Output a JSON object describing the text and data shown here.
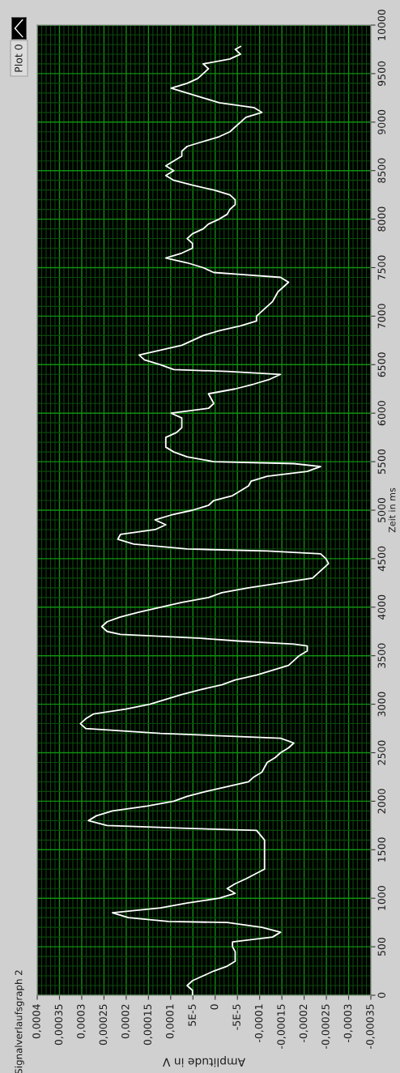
{
  "chart_data": {
    "type": "line",
    "title": "Signalverlaufsgraph 2",
    "xlabel": "Amplitude in V",
    "ylabel": "Zeit in ms",
    "xlim": [
      0.0004,
      -0.00035
    ],
    "xticks": [
      {
        "value": 0.0004,
        "label": "0,0004"
      },
      {
        "value": 0.00035,
        "label": "0,00035"
      },
      {
        "value": 0.0003,
        "label": "0,0003"
      },
      {
        "value": 0.00025,
        "label": "0,00025"
      },
      {
        "value": 0.0002,
        "label": "0,0002"
      },
      {
        "value": 0.00015,
        "label": "0,00015"
      },
      {
        "value": 0.0001,
        "label": "0,0001"
      },
      {
        "value": 5e-05,
        "label": "5E-5"
      },
      0,
      {
        "value": -5e-05,
        "label": "-5E-5"
      },
      {
        "value": -0.0001,
        "label": "-0,0001"
      },
      {
        "value": -0.00015,
        "label": "-0,00015"
      },
      {
        "value": -0.0002,
        "label": "-0,0002"
      },
      {
        "value": -0.00025,
        "label": "-0,00025"
      },
      {
        "value": -0.0003,
        "label": "-0,0003"
      },
      {
        "value": -0.00035,
        "label": "-0,00035"
      },
      {
        "value": 0.00039,
        "label": null
      },
      {
        "value": 0.00038,
        "label": null
      },
      {
        "value": 0.00037,
        "label": null
      },
      {
        "value": 0.00036,
        "label": null
      },
      {
        "value": 0.00034,
        "label": null
      },
      {
        "value": 0.00033,
        "label": null
      },
      {
        "value": 0.00032,
        "label": null
      },
      {
        "value": 0.00031,
        "label": null
      },
      {
        "value": 0.00029,
        "label": null
      },
      {
        "value": 0.00028,
        "label": null
      },
      {
        "value": 0.00027,
        "label": null
      },
      {
        "value": 0.00026,
        "label": null
      },
      {
        "value": 0.00024,
        "label": null
      },
      {
        "value": 0.00023,
        "label": null
      },
      {
        "value": 0.00022,
        "label": null
      },
      {
        "value": 0.00021,
        "label": null
      },
      {
        "value": 0.00019,
        "label": null
      },
      {
        "value": 0.00018,
        "label": null
      },
      {
        "value": 0.00017,
        "label": null
      },
      {
        "value": 0.00016,
        "label": null
      },
      {
        "value": 0.00014,
        "label": null
      },
      {
        "value": 0.00013,
        "label": null
      },
      {
        "value": 0.00012,
        "label": null
      },
      {
        "value": 0.00011,
        "label": null
      },
      {
        "value": 9e-05,
        "label": null
      },
      {
        "value": 8e-05,
        "label": null
      },
      {
        "value": 7e-05,
        "label": null
      },
      {
        "value": 6e-05,
        "label": null
      },
      {
        "value": 4e-05,
        "label": null
      },
      {
        "value": 3e-05,
        "label": null
      },
      {
        "value": 2e-05,
        "label": null
      },
      {
        "value": 1e-05,
        "label": null
      },
      {
        "value": -1e-05,
        "label": null
      },
      {
        "value": -2e-05,
        "label": null
      },
      {
        "value": -3e-05,
        "label": null
      },
      {
        "value": -4e-05,
        "label": null
      },
      {
        "value": -6e-05,
        "label": null
      },
      {
        "value": -7e-05,
        "label": null
      },
      {
        "value": -8e-05,
        "label": null
      },
      {
        "value": -9e-05,
        "label": null
      },
      {
        "value": -0.00011,
        "label": null
      },
      {
        "value": -0.00012,
        "label": null
      },
      {
        "value": -0.00013,
        "label": null
      },
      {
        "value": -0.00014,
        "label": null
      },
      {
        "value": -0.00016,
        "label": null
      },
      {
        "value": -0.00017,
        "label": null
      },
      {
        "value": -0.00018,
        "label": null
      },
      {
        "value": -0.00019,
        "label": null
      },
      {
        "value": -0.00021,
        "label": null
      },
      {
        "value": -0.00022,
        "label": null
      },
      {
        "value": -0.00023,
        "label": null
      },
      {
        "value": -0.00024,
        "label": null
      },
      {
        "value": -0.00026,
        "label": null
      },
      {
        "value": -0.00027,
        "label": null
      },
      {
        "value": -0.00028,
        "label": null
      },
      {
        "value": -0.00029,
        "label": null
      },
      {
        "value": -0.00031,
        "label": null
      },
      {
        "value": -0.00032,
        "label": null
      },
      {
        "value": -0.00033,
        "label": null
      },
      {
        "value": -0.00034,
        "label": null
      }
    ],
    "ylim": [
      0,
      10000
    ],
    "yticks": [
      0,
      500,
      1000,
      1500,
      2000,
      2500,
      3000,
      3500,
      4000,
      4500,
      5000,
      5500,
      6000,
      6500,
      7000,
      7500,
      8000,
      8500,
      9000,
      9500,
      10000,
      {
        "value": 100,
        "label": null
      },
      {
        "value": 200,
        "label": null
      },
      {
        "value": 300,
        "label": null
      },
      {
        "value": 400,
        "label": null
      },
      {
        "value": 600,
        "label": null
      },
      {
        "value": 700,
        "label": null
      },
      {
        "value": 800,
        "label": null
      },
      {
        "value": 900,
        "label": null
      },
      {
        "value": 1100,
        "label": null
      },
      {
        "value": 1200,
        "label": null
      },
      {
        "value": 1300,
        "label": null
      },
      {
        "value": 1400,
        "label": null
      },
      {
        "value": 1600,
        "label": null
      },
      {
        "value": 1700,
        "label": null
      },
      {
        "value": 1800,
        "label": null
      },
      {
        "value": 1900,
        "label": null
      },
      {
        "value": 2100,
        "label": null
      },
      {
        "value": 2200,
        "label": null
      },
      {
        "value": 2300,
        "label": null
      },
      {
        "value": 2400,
        "label": null
      },
      {
        "value": 2600,
        "label": null
      },
      {
        "value": 2700,
        "label": null
      },
      {
        "value": 2800,
        "label": null
      },
      {
        "value": 2900,
        "label": null
      },
      {
        "value": 3100,
        "label": null
      },
      {
        "value": 3200,
        "label": null
      },
      {
        "value": 3300,
        "label": null
      },
      {
        "value": 3400,
        "label": null
      },
      {
        "value": 3600,
        "label": null
      },
      {
        "value": 3700,
        "label": null
      },
      {
        "value": 3800,
        "label": null
      },
      {
        "value": 3900,
        "label": null
      },
      {
        "value": 4100,
        "label": null
      },
      {
        "value": 4200,
        "label": null
      },
      {
        "value": 4300,
        "label": null
      },
      {
        "value": 4400,
        "label": null
      },
      {
        "value": 4600,
        "label": null
      },
      {
        "value": 4700,
        "label": null
      },
      {
        "value": 4800,
        "label": null
      },
      {
        "value": 4900,
        "label": null
      },
      {
        "value": 5100,
        "label": null
      },
      {
        "value": 5200,
        "label": null
      },
      {
        "value": 5300,
        "label": null
      },
      {
        "value": 5400,
        "label": null
      },
      {
        "value": 5600,
        "label": null
      },
      {
        "value": 5700,
        "label": null
      },
      {
        "value": 5800,
        "label": null
      },
      {
        "value": 5900,
        "label": null
      },
      {
        "value": 6100,
        "label": null
      },
      {
        "value": 6200,
        "label": null
      },
      {
        "value": 6300,
        "label": null
      },
      {
        "value": 6400,
        "label": null
      },
      {
        "value": 6600,
        "label": null
      },
      {
        "value": 6700,
        "label": null
      },
      {
        "value": 6800,
        "label": null
      },
      {
        "value": 6900,
        "label": null
      },
      {
        "value": 7100,
        "label": null
      },
      {
        "value": 7200,
        "label": null
      },
      {
        "value": 7300,
        "label": null
      },
      {
        "value": 7400,
        "label": null
      },
      {
        "value": 7600,
        "label": null
      },
      {
        "value": 7700,
        "label": null
      },
      {
        "value": 7800,
        "label": null
      },
      {
        "value": 7900,
        "label": null
      },
      {
        "value": 8100,
        "label": null
      },
      {
        "value": 8200,
        "label": null
      },
      {
        "value": 8300,
        "label": null
      },
      {
        "value": 8400,
        "label": null
      },
      {
        "value": 8600,
        "label": null
      },
      {
        "value": 8700,
        "label": null
      },
      {
        "value": 8800,
        "label": null
      },
      {
        "value": 8900,
        "label": null
      },
      {
        "value": 9100,
        "label": null
      },
      {
        "value": 9200,
        "label": null
      },
      {
        "value": 9300,
        "label": null
      },
      {
        "value": 9400,
        "label": null
      },
      {
        "value": 9600,
        "label": null
      },
      {
        "value": 9700,
        "label": null
      },
      {
        "value": 9800,
        "label": null
      },
      {
        "value": 9900,
        "label": null
      }
    ],
    "grid": true,
    "legend": "top left",
    "series": [
      {
        "name": "Plot 0",
        "color": "#ffffff",
        "x": [
          5.1e-05,
          5.1e-05,
          6.3e-05,
          5.1e-05,
          2.7e-05,
          3e-06,
          -2.7e-05,
          -4.5e-05,
          -4.5e-05,
          -4.5e-05,
          -3.9e-05,
          -3.9e-05,
          -0.000129,
          -0.000147,
          -0.000105,
          -2.7e-05,
          0.000105,
          0.000195,
          0.000231,
          0.000123,
          6.3e-05,
          -9e-06,
          -4.5e-05,
          -2.7e-05,
          -4.5e-05,
          -6.9e-05,
          -0.000111,
          -0.000111,
          -0.000111,
          -0.000111,
          -9.3e-05,
          6.3e-05,
          0.000243,
          0.000285,
          0.000267,
          0.000231,
          0.000153,
          9.3e-05,
          6.3e-05,
          2.1e-05,
          -2.7e-05,
          -7.5e-05,
          -8.7e-05,
          -0.000105,
          -0.000111,
          -0.000117,
          -0.000135,
          -0.000147,
          -0.000165,
          -0.000177,
          -0.000147,
          0.000123,
          0.000291,
          0.000303,
          0.000291,
          0.000273,
          0.000201,
          0.000147,
          0.000111,
          7.5e-05,
          3.3e-05,
          -1.5e-05,
          -4.5e-05,
          -9.3e-05,
          -0.000129,
          -0.000165,
          -0.000177,
          -0.000189,
          -0.000207,
          -0.000207,
          -0.000177,
          -5.7e-05,
          3.3e-05,
          0.000213,
          0.000243,
          0.000255,
          0.000243,
          0.000213,
          0.000171,
          0.000123,
          7.5e-05,
          1.5e-05,
          -1.5e-05,
          -7.5e-05,
          -0.000147,
          -0.000219,
          -0.000231,
          -0.000243,
          -0.000255,
          -0.000249,
          -0.000237,
          -0.000117,
          6.3e-05,
          0.000183,
          0.000219,
          0.000213,
          0.000135,
          0.000111,
          0.000135,
          9.9e-05,
          5.1e-05,
          1.5e-05,
          3e-06,
          -3.9e-05,
          -5.7e-05,
          -7.5e-05,
          -8.1e-05,
          -0.000117,
          -0.000207,
          -0.000237,
          -0.000177,
          3e-06,
          6.3e-05,
          9.3e-05,
          0.000111,
          0.000111,
          0.000111,
          8.7e-05,
          7.5e-05,
          7.5e-05,
          7.5e-05,
          9.9e-05,
          1.5e-05,
          3e-06,
          9e-06,
          1.5e-05,
          -4.5e-05,
          -8.7e-05,
          -0.000123,
          -0.000147,
          -2.7e-05,
          9.3e-05,
          0.000123,
          0.000159,
          0.000171,
          0.000123,
          7.5e-05,
          5.1e-05,
          2.7e-05,
          -9e-06,
          -5.7e-05,
          -9.3e-05,
          -9.3e-05,
          -0.000105,
          -0.000117,
          -0.000129,
          -0.000135,
          -0.000141,
          -0.000153,
          -0.000165,
          -0.000147,
          -5.7e-05,
          3e-06,
          2.7e-05,
          6.3e-05,
          0.000111,
          7.5e-05,
          5.1e-05,
          5.1e-05,
          6.3e-05,
          5.1e-05,
          2.7e-05,
          1.5e-05,
          -9e-06,
          -2.7e-05,
          -3.3e-05,
          -4.5e-05,
          -4.5e-05,
          -3.3e-05,
          3e-06,
          5.1e-05,
          9.3e-05,
          0.000111,
          9.3e-05,
          0.000111,
          9.3e-05,
          7.5e-05,
          7.5e-05,
          6.3e-05,
          2.7e-05,
          -9e-06,
          -3.3e-05,
          -4.5e-05,
          -5.7e-05,
          -6.9e-05,
          -0.000105,
          -8.7e-05,
          -9e-06,
          2.7e-05,
          6.3e-05,
          9.9e-05,
          6.3e-05,
          3.9e-05,
          2.7e-05,
          1.5e-05,
          2.7e-05,
          -3.3e-05,
          -5.7e-05,
          -4.5e-05,
          -5.7e-05
        ],
        "values": [
          0,
          50,
          100,
          150,
          200,
          250,
          300,
          350,
          400,
          450,
          500,
          550,
          600,
          650,
          700,
          750,
          760,
          800,
          850,
          900,
          950,
          1000,
          1050,
          1100,
          1150,
          1200,
          1300,
          1400,
          1500,
          1600,
          1700,
          1720,
          1750,
          1800,
          1850,
          1900,
          1950,
          2000,
          2050,
          2100,
          2150,
          2200,
          2250,
          2300,
          2350,
          2400,
          2450,
          2500,
          2550,
          2600,
          2650,
          2700,
          2750,
          2800,
          2850,
          2900,
          2950,
          3000,
          3050,
          3100,
          3150,
          3200,
          3250,
          3300,
          3350,
          3400,
          3450,
          3500,
          3550,
          3600,
          3620,
          3650,
          3680,
          3720,
          3750,
          3800,
          3850,
          3900,
          3950,
          4000,
          4050,
          4100,
          4150,
          4200,
          4250,
          4300,
          4350,
          4400,
          4450,
          4500,
          4550,
          4580,
          4600,
          4650,
          4700,
          4750,
          4800,
          4850,
          4900,
          4950,
          5000,
          5050,
          5100,
          5150,
          5200,
          5250,
          5300,
          5350,
          5400,
          5450,
          5480,
          5500,
          5550,
          5600,
          5650,
          5700,
          5750,
          5800,
          5850,
          5900,
          5950,
          6000,
          6050,
          6100,
          6150,
          6200,
          6250,
          6300,
          6350,
          6400,
          6430,
          6450,
          6500,
          6550,
          6600,
          6650,
          6700,
          6750,
          6800,
          6850,
          6900,
          6950,
          7000,
          7050,
          7100,
          7150,
          7200,
          7250,
          7300,
          7350,
          7400,
          7430,
          7450,
          7500,
          7550,
          7600,
          7650,
          7700,
          7750,
          7800,
          7850,
          7900,
          7950,
          8000,
          8050,
          8100,
          8150,
          8200,
          8250,
          8300,
          8350,
          8400,
          8450,
          8500,
          8550,
          8600,
          8650,
          8700,
          8750,
          8800,
          8850,
          8900,
          8950,
          9000,
          9050,
          9100,
          9150,
          9200,
          9250,
          9300,
          9350,
          9400,
          9450,
          9500,
          9550,
          9600,
          9650,
          9700,
          9750,
          9780
        ]
      }
    ]
  }
}
